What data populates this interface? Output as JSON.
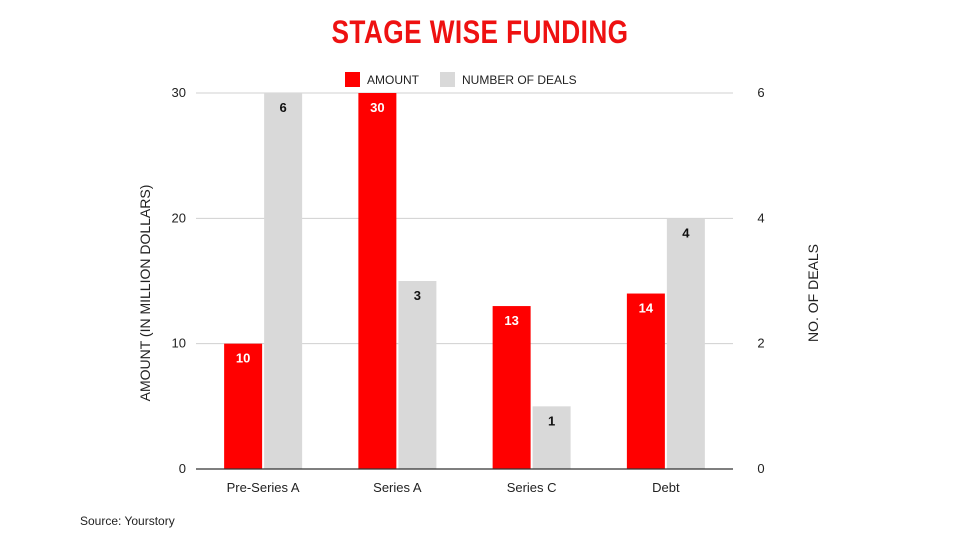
{
  "chart_data": {
    "type": "bar",
    "title": "STAGE WISE FUNDING",
    "categories": [
      "Pre-Series A",
      "Series A",
      "Series C",
      "Debt"
    ],
    "series": [
      {
        "name": "AMOUNT",
        "axis": "left",
        "color": "#ff0000",
        "values": [
          10,
          30,
          13,
          14
        ],
        "labels": [
          "10",
          "30",
          "13",
          "14"
        ]
      },
      {
        "name": "NUMBER OF DEALS",
        "axis": "right",
        "color": "#d9d9d9",
        "values": [
          6,
          3,
          1,
          4
        ],
        "labels": [
          "6",
          "3",
          "1",
          "4"
        ]
      }
    ],
    "ylabel": "AMOUNT (IN MILLION DOLLARS)",
    "ylabel_right": "NO. OF DEALS",
    "ylim": [
      0,
      30
    ],
    "ylim_right": [
      0,
      6
    ],
    "yticks": [
      "0",
      "10",
      "20",
      "30"
    ],
    "yticks_right": [
      "0",
      "2",
      "4",
      "6"
    ],
    "grid": true,
    "legend": "top-center"
  },
  "colors": {
    "title": "#ee1111",
    "axis": "#333333",
    "grid": "#d0d0d0"
  },
  "source": "Source: Yourstory"
}
